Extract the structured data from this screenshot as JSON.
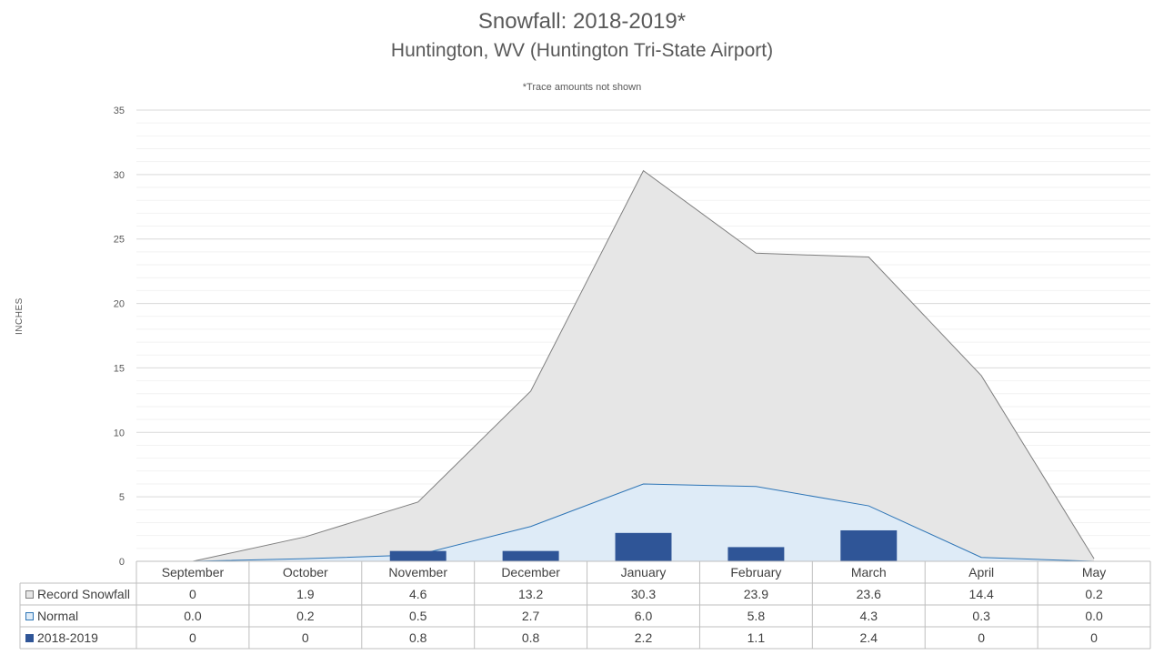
{
  "chart_data": {
    "type": "area",
    "title": "Snowfall: 2018-2019*",
    "subtitle": "Huntington, WV (Huntington Tri-State Airport)",
    "note": "*Trace amounts not shown",
    "ylabel": "INCHES",
    "ylim": [
      0,
      35
    ],
    "yticks": [
      "0",
      "5",
      "10",
      "15",
      "20",
      "25",
      "30",
      "35"
    ],
    "categories": [
      "September",
      "October",
      "November",
      "December",
      "January",
      "February",
      "March",
      "April",
      "May"
    ],
    "series": [
      {
        "name": "Record Snowfall",
        "kind": "area",
        "color": "#e6e6e6",
        "stroke": "#7f7f7f",
        "values": [
          0,
          1.9,
          4.6,
          13.2,
          30.3,
          23.9,
          23.6,
          14.4,
          0.2
        ],
        "labels": [
          "0",
          "1.9",
          "4.6",
          "13.2",
          "30.3",
          "23.9",
          "23.6",
          "14.4",
          "0.2"
        ]
      },
      {
        "name": "Normal",
        "kind": "area",
        "color": "#deebf7",
        "stroke": "#2e75b6",
        "values": [
          0.0,
          0.2,
          0.5,
          2.7,
          6.0,
          5.8,
          4.3,
          0.3,
          0.0
        ],
        "labels": [
          "0.0",
          "0.2",
          "0.5",
          "2.7",
          "6.0",
          "5.8",
          "4.3",
          "0.3",
          "0.0"
        ]
      },
      {
        "name": "2018-2019",
        "kind": "bar",
        "color": "#2f5597",
        "values": [
          0,
          0,
          0.8,
          0.8,
          2.2,
          1.1,
          2.4,
          0,
          0
        ],
        "labels": [
          "0",
          "0",
          "0.8",
          "0.8",
          "2.2",
          "1.1",
          "2.4",
          "0",
          "0"
        ]
      }
    ],
    "grid": true,
    "legend": "data-table"
  }
}
